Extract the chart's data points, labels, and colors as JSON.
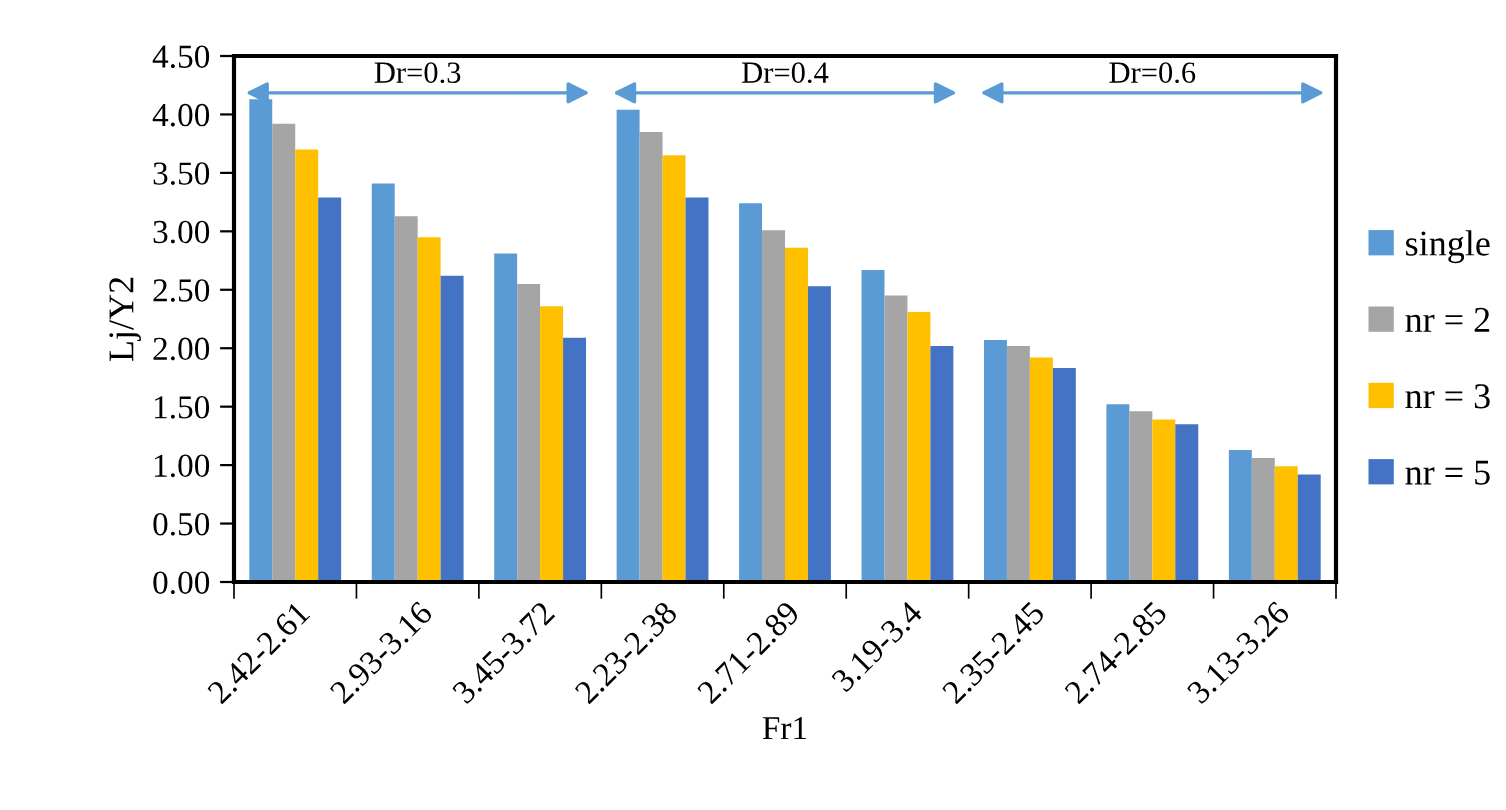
{
  "chart_data": {
    "type": "bar",
    "xlabel": "Fr1",
    "ylabel": "Lj/Y2",
    "categories": [
      "2.42-2.61",
      "2.93-3.16",
      "3.45-3.72",
      "2.23-2.38",
      "2.71-2.89",
      "3.19-3.4",
      "2.35-2.45",
      "2.74-2.85",
      "3.13-3.26"
    ],
    "series": [
      {
        "name": "single",
        "color": "#5b9bd5",
        "values": [
          4.13,
          3.41,
          2.81,
          4.04,
          3.24,
          2.67,
          2.07,
          1.52,
          1.13
        ]
      },
      {
        "name": "nr = 2",
        "color": "#a5a5a5",
        "values": [
          3.92,
          3.13,
          2.55,
          3.85,
          3.01,
          2.45,
          2.02,
          1.46,
          1.06
        ]
      },
      {
        "name": "nr = 3",
        "color": "#ffc000",
        "values": [
          3.7,
          2.95,
          2.36,
          3.65,
          2.86,
          2.31,
          1.92,
          1.39,
          0.99
        ]
      },
      {
        "name": "nr = 5",
        "color": "#4472c4",
        "values": [
          3.29,
          2.62,
          2.09,
          3.29,
          2.53,
          2.02,
          1.83,
          1.35,
          0.92
        ]
      }
    ],
    "ylim": [
      0,
      4.5
    ],
    "yticks": [
      {
        "value": 0,
        "label": "0.00"
      },
      {
        "value": 0.5,
        "label": "0.50"
      },
      {
        "value": 1,
        "label": "1.00"
      },
      {
        "value": 1.5,
        "label": "1.50"
      },
      {
        "value": 2,
        "label": "2.00"
      },
      {
        "value": 2.5,
        "label": "2.50"
      },
      {
        "value": 3,
        "label": "3.00"
      },
      {
        "value": 3.5,
        "label": "3.50"
      },
      {
        "value": 4,
        "label": "4.00"
      },
      {
        "value": 4.5,
        "label": "4.50"
      }
    ],
    "annotations": [
      "Dr=0.3",
      "Dr=0.4",
      "Dr=0.6"
    ],
    "legend": "right",
    "grid": false
  }
}
